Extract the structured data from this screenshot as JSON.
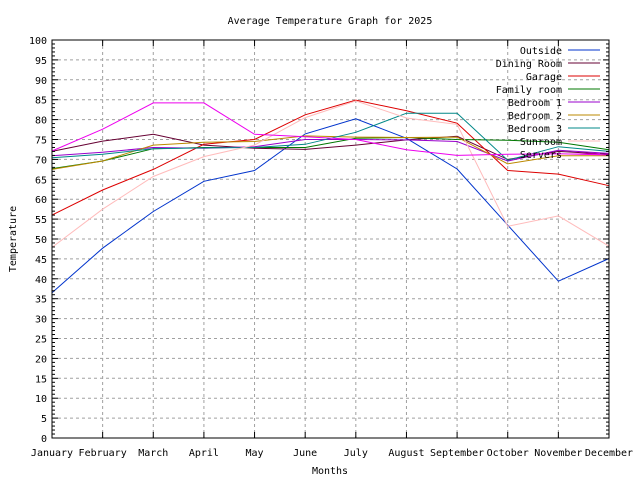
{
  "chart_data": {
    "type": "line",
    "title": "Average Temperature Graph for 2025",
    "xlabel": "Months",
    "ylabel": "Temperature",
    "ylim": [
      0,
      100
    ],
    "ytick_step": 5,
    "grid": true,
    "legend_position": "top-right",
    "categories": [
      "January",
      "February",
      "March",
      "April",
      "May",
      "June",
      "July",
      "August",
      "September",
      "October",
      "November",
      "December"
    ],
    "series": [
      {
        "name": "Outside",
        "color": "#0033cc",
        "values": [
          36.5,
          47.7,
          56.9,
          64.5,
          67.2,
          76.4,
          80.2,
          75.3,
          67.6,
          53.5,
          39.4,
          45.1
        ]
      },
      {
        "name": "Dining Room",
        "color": "#660033",
        "values": [
          72.0,
          74.6,
          76.3,
          73.6,
          72.8,
          72.5,
          73.6,
          74.9,
          75.8,
          70.0,
          72.0,
          71.3
        ]
      },
      {
        "name": "Garage",
        "color": "#dd0000",
        "values": [
          56.0,
          62.3,
          67.5,
          73.8,
          75.0,
          81.2,
          84.9,
          82.2,
          79.1,
          67.2,
          66.3,
          63.4
        ]
      },
      {
        "name": "Family room",
        "color": "#007700",
        "values": [
          67.7,
          69.6,
          72.7,
          73.0,
          73.0,
          73.0,
          75.3,
          75.5,
          75.0,
          74.8,
          74.3,
          72.4
        ]
      },
      {
        "name": "Bedroom 1",
        "color": "#9900cc",
        "values": [
          70.9,
          71.8,
          73.0,
          72.8,
          73.2,
          75.0,
          75.0,
          74.9,
          74.5,
          69.6,
          72.3,
          71.5
        ]
      },
      {
        "name": "Bedroom 2",
        "color": "#bb8800",
        "values": [
          67.5,
          69.6,
          73.6,
          74.3,
          74.5,
          75.9,
          75.6,
          75.5,
          75.6,
          68.9,
          70.9,
          70.9
        ]
      },
      {
        "name": "Bedroom 3",
        "color": "#008888",
        "values": [
          70.4,
          71.3,
          72.7,
          72.9,
          73.0,
          73.8,
          76.8,
          81.6,
          81.6,
          69.8,
          73.2,
          72.0
        ]
      },
      {
        "name": "Sunroom",
        "color": "#ffbbbb",
        "values": [
          47.9,
          57.5,
          65.7,
          70.7,
          73.6,
          80.5,
          84.7,
          80.4,
          78.8,
          53.2,
          55.8,
          48.2
        ]
      },
      {
        "name": "Servers",
        "color": "#ee00ee",
        "values": [
          72.1,
          77.6,
          84.2,
          84.2,
          76.3,
          75.7,
          75.0,
          72.4,
          71.0,
          71.3,
          71.4,
          71.1
        ]
      }
    ]
  }
}
